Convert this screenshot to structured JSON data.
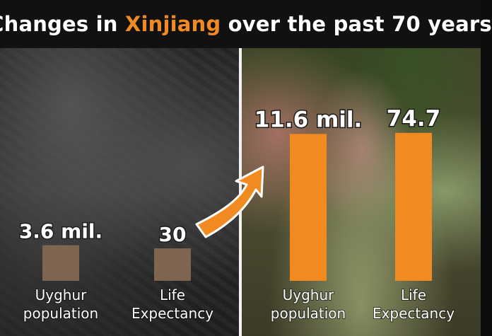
{
  "header": {
    "title_before": "Changes in ",
    "title_highlight": "Xinjiang",
    "title_after": " over the past 70 years"
  },
  "colors": {
    "then_bar": "#7e6550",
    "now_bar": "#f28a22",
    "highlight": "#f28a22",
    "arrow": "#f28a22"
  },
  "chart_data": [
    {
      "type": "bar",
      "period": "then",
      "categories": [
        "Uyghur population",
        "Life Expectancy"
      ],
      "category_lines": [
        [
          "Uyghur",
          "population"
        ],
        [
          "Life",
          "Expectancy"
        ]
      ],
      "values": [
        3.6,
        30
      ],
      "value_labels": [
        "3.6 mil.",
        "30"
      ]
    },
    {
      "type": "bar",
      "period": "now",
      "categories": [
        "Uyghur population",
        "Life Expectancy"
      ],
      "category_lines": [
        [
          "Uyghur",
          "population"
        ],
        [
          "Life",
          "Expectancy"
        ]
      ],
      "values": [
        11.6,
        74.7
      ],
      "value_labels": [
        "11.6 mil.",
        "74.7"
      ]
    }
  ]
}
